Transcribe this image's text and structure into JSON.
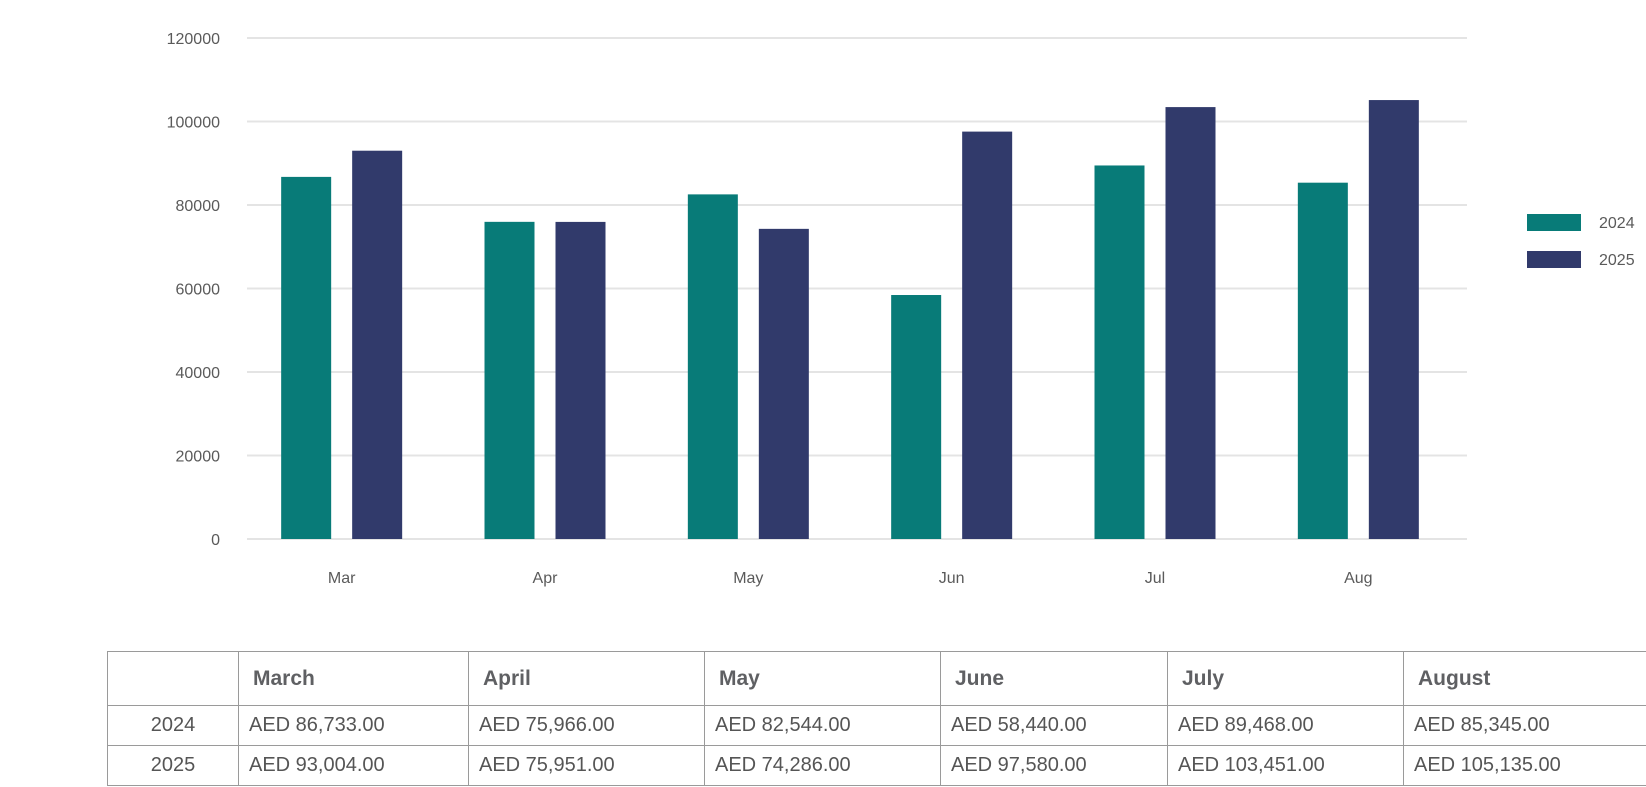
{
  "chart_data": {
    "type": "bar",
    "categories": [
      "Mar",
      "Apr",
      "May",
      "Jun",
      "Jul",
      "Aug"
    ],
    "series": [
      {
        "name": "2024",
        "color": "#087b78",
        "values": [
          86733,
          75966,
          82544,
          58440,
          89468,
          85345
        ]
      },
      {
        "name": "2025",
        "color": "#313a6b",
        "values": [
          93004,
          75951,
          74286,
          97580,
          103451,
          105135
        ]
      }
    ],
    "yticks": [
      "0",
      "20000",
      "40000",
      "60000",
      "80000",
      "100000",
      "120000"
    ],
    "ylim": [
      0,
      120000
    ],
    "grid": true,
    "legend_position": "right"
  },
  "table": {
    "headers": [
      "",
      "March",
      "April",
      "May",
      "June",
      "July",
      "August"
    ],
    "rows": [
      {
        "label": "2024",
        "cells": [
          "AED 86,733.00",
          "AED 75,966.00",
          "AED 82,544.00",
          "AED 58,440.00",
          "AED 89,468.00",
          "AED 85,345.00"
        ]
      },
      {
        "label": "2025",
        "cells": [
          "AED 93,004.00",
          "AED 75,951.00",
          "AED 74,286.00",
          "AED 97,580.00",
          "AED 103,451.00",
          "AED 105,135.00"
        ]
      }
    ]
  }
}
